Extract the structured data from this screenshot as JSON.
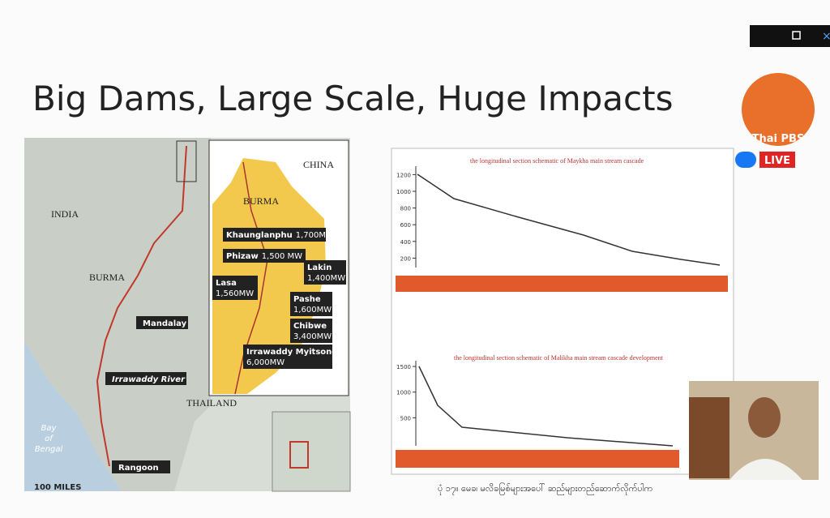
{
  "header": {
    "title": "Big Dams, Large Scale, Huge Impacts"
  },
  "map": {
    "countries": [
      "INDIA",
      "BURMA",
      "CHINA",
      "BURMA",
      "THAILAND"
    ],
    "places": [
      "Mandalay",
      "Irrawaddy River",
      "Rangoon"
    ],
    "sea": [
      "Bay",
      "of",
      "Bengal"
    ],
    "scale": "100 MILES",
    "dams": [
      {
        "name": "Khaunglanphu",
        "capacity": "1,700MW"
      },
      {
        "name": "Phizaw",
        "capacity": "1,500 MW"
      },
      {
        "name": "Lakin",
        "capacity": "1,400MW"
      },
      {
        "name": "Lasa",
        "capacity": "1,560MW"
      },
      {
        "name": "Pashe",
        "capacity": "1,600MW"
      },
      {
        "name": "Chibwe",
        "capacity": "3,400MW"
      },
      {
        "name": "Irrawaddy Myitsone",
        "capacity": "6,000MW"
      }
    ]
  },
  "schematics": [
    {
      "title": "the longitudinal section schematic of Maykha main stream cascade",
      "yticks": [
        1200,
        1000,
        800,
        600,
        400,
        200
      ]
    },
    {
      "title": "the longitudinal section schematic of Malikha main stream cascade development",
      "yticks": [
        1500,
        1000,
        500
      ]
    }
  ],
  "caption": "ပုံ ၁၇။ မေခ၊ မလိခမြစ်များအပေါ် ဆည်များတည်ဆောက်လိုက်ပါက",
  "overlay": {
    "brand": "Thai PBS",
    "live": "LIVE"
  }
}
